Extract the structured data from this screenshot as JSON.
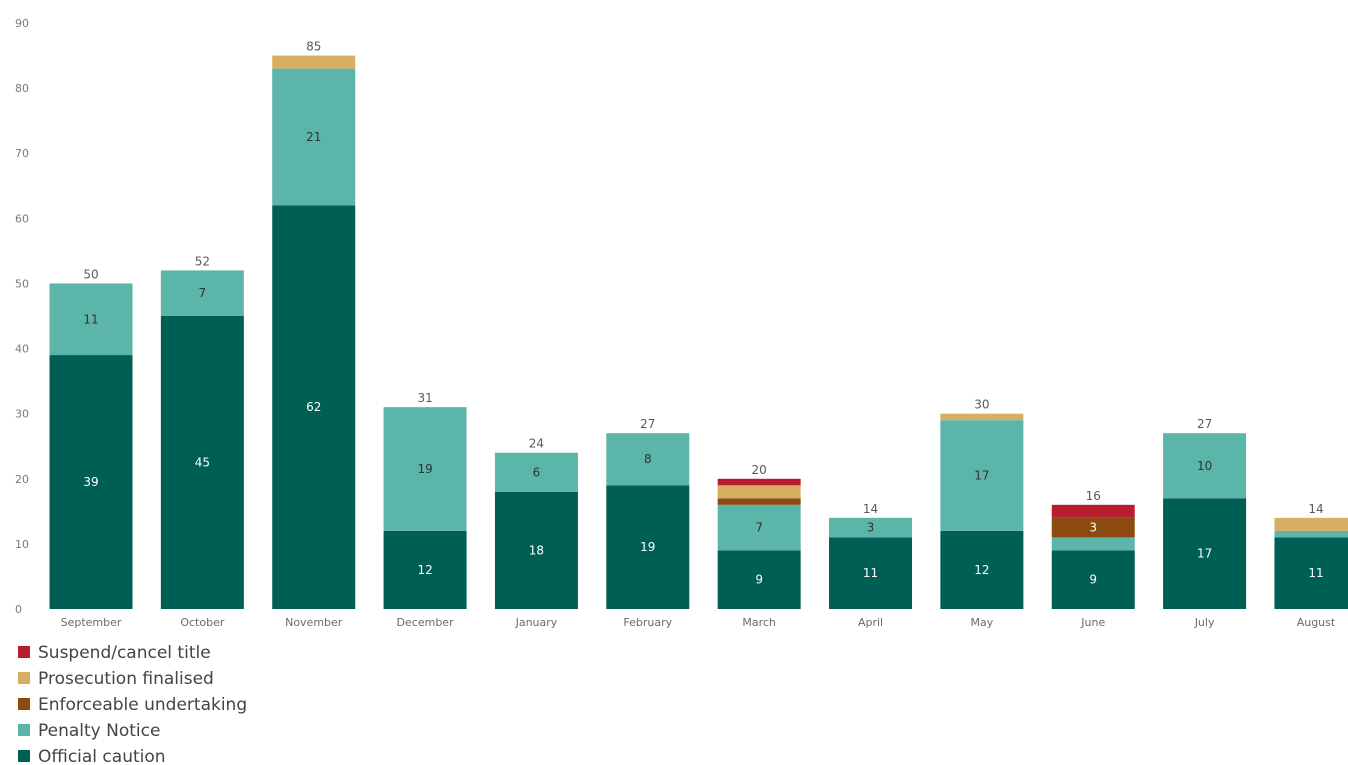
{
  "chart_data": {
    "type": "bar",
    "stacked": true,
    "title": "",
    "xlabel": "",
    "ylabel": "",
    "ylim": [
      0,
      90
    ],
    "yticks": [
      0,
      10,
      20,
      30,
      40,
      50,
      60,
      70,
      80,
      90
    ],
    "grid": false,
    "legend_position": "bottom-left",
    "categories": [
      "September",
      "October",
      "November",
      "December",
      "January",
      "February",
      "March",
      "April",
      "May",
      "June",
      "July",
      "August"
    ],
    "series": [
      {
        "name": "Official caution",
        "color": "#005f54",
        "label_color": "#ffffff",
        "values": [
          39,
          45,
          62,
          12,
          18,
          19,
          9,
          11,
          12,
          9,
          17,
          11
        ]
      },
      {
        "name": "Penalty Notice",
        "color": "#5bb5a8",
        "label_color": "#333333",
        "values": [
          11,
          7,
          21,
          19,
          6,
          8,
          7,
          3,
          17,
          2,
          10,
          1
        ]
      },
      {
        "name": "Enforceable undertaking",
        "color": "#8c4a10",
        "label_color": "#ffffff",
        "values": [
          0,
          0,
          0,
          0,
          0,
          0,
          1,
          0,
          0,
          3,
          0,
          0
        ]
      },
      {
        "name": "Prosecution finalised",
        "color": "#d8ae62",
        "label_color": "#333333",
        "values": [
          0,
          0,
          2,
          0,
          0,
          0,
          2,
          0,
          1,
          0,
          0,
          2
        ]
      },
      {
        "name": "Suspend/cancel title",
        "color": "#b81c30",
        "label_color": "#ffffff",
        "values": [
          0,
          0,
          0,
          0,
          0,
          0,
          1,
          0,
          0,
          2,
          0,
          0
        ]
      }
    ],
    "totals": [
      50,
      52,
      85,
      31,
      24,
      27,
      20,
      14,
      30,
      16,
      27,
      14
    ],
    "legend_order": [
      "Suspend/cancel title",
      "Prosecution finalised",
      "Enforceable undertaking",
      "Penalty Notice",
      "Official caution"
    ]
  }
}
